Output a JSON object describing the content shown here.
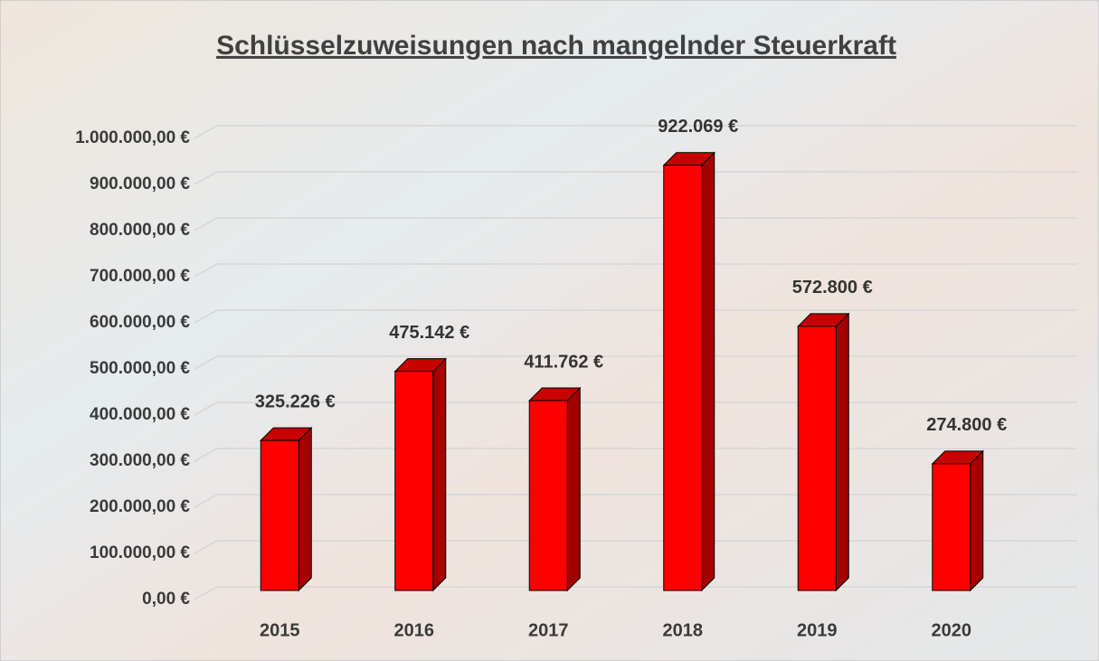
{
  "chart_data": {
    "type": "bar3d",
    "title": "Schlüsselzuweisungen nach mangelnder Steuerkraft",
    "categories": [
      "2015",
      "2016",
      "2017",
      "2018",
      "2019",
      "2020"
    ],
    "values": [
      325226,
      475142,
      411762,
      922069,
      572800,
      274800
    ],
    "value_labels": [
      "325.226 €",
      "475.142 €",
      "411.762 €",
      "922.069 €",
      "572.800 €",
      "274.800 €"
    ],
    "color": "#ff0000",
    "ylim": [
      0,
      1000000
    ],
    "yticks": [
      {
        "value": 0,
        "label": "0,00 €"
      },
      {
        "value": 100000,
        "label": "100.000,00 €"
      },
      {
        "value": 200000,
        "label": "200.000,00 €"
      },
      {
        "value": 300000,
        "label": "300.000,00 €"
      },
      {
        "value": 400000,
        "label": "400.000,00 €"
      },
      {
        "value": 500000,
        "label": "500.000,00 €"
      },
      {
        "value": 600000,
        "label": "600.000,00 €"
      },
      {
        "value": 700000,
        "label": "700.000,00 €"
      },
      {
        "value": 800000,
        "label": "800.000,00 €"
      },
      {
        "value": 900000,
        "label": "900.000,00 €"
      },
      {
        "value": 1000000,
        "label": "1.000.000,00 €"
      }
    ],
    "grid": true
  }
}
